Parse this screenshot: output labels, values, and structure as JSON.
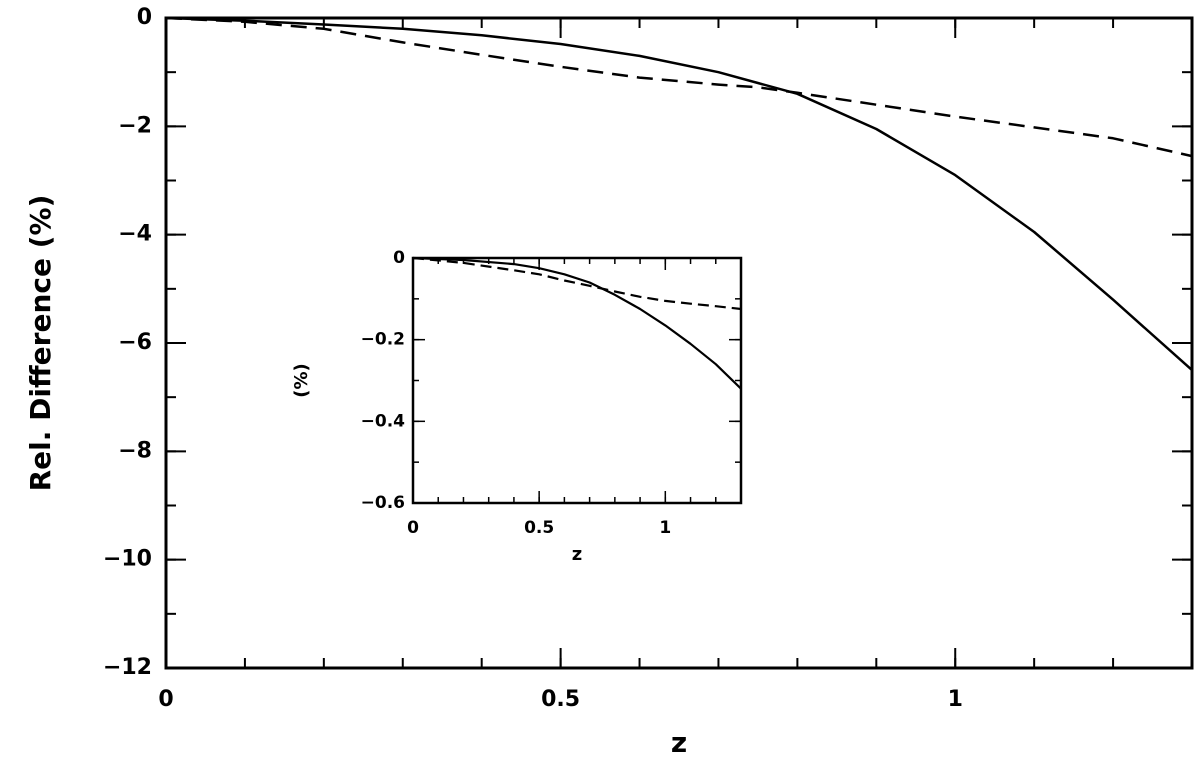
{
  "chart_data": [
    {
      "type": "line",
      "title": "",
      "xlabel": "z",
      "ylabel": "Rel. Difference (%)",
      "xlim": [
        0,
        1.3
      ],
      "ylim": [
        -12,
        0
      ],
      "xticks": [
        0,
        0.5,
        1
      ],
      "xtick_labels": [
        "0",
        "0.5",
        "1"
      ],
      "yticks": [
        0,
        -2,
        -4,
        -6,
        -8,
        -10,
        -12
      ],
      "ytick_labels": [
        "0",
        "−2",
        "−4",
        "−6",
        "−8",
        "−10",
        "−12"
      ],
      "grid": false,
      "legend": "none",
      "series": [
        {
          "style": "solid",
          "x": [
            0,
            0.1,
            0.2,
            0.3,
            0.4,
            0.5,
            0.6,
            0.7,
            0.75,
            0.8,
            0.9,
            1.0,
            1.1,
            1.2,
            1.3
          ],
          "y": [
            0,
            -0.05,
            -0.12,
            -0.2,
            -0.32,
            -0.48,
            -0.7,
            -1.0,
            -1.2,
            -1.4,
            -2.05,
            -2.9,
            -3.95,
            -5.2,
            -6.5
          ]
        },
        {
          "style": "dashed",
          "x": [
            0,
            0.1,
            0.2,
            0.3,
            0.4,
            0.5,
            0.6,
            0.7,
            0.75,
            0.8,
            0.9,
            1.0,
            1.1,
            1.2,
            1.3
          ],
          "y": [
            0,
            -0.07,
            -0.2,
            -0.45,
            -0.68,
            -0.9,
            -1.1,
            -1.23,
            -1.28,
            -1.38,
            -1.6,
            -1.82,
            -2.02,
            -2.22,
            -2.55
          ]
        }
      ]
    },
    {
      "type": "line",
      "title": "",
      "xlabel": "z",
      "ylabel": "(%)",
      "xlim": [
        0,
        1.3
      ],
      "ylim": [
        -0.6,
        0
      ],
      "xticks": [
        0,
        0.5,
        1
      ],
      "xtick_labels": [
        "0",
        "0.5",
        "1"
      ],
      "yticks": [
        0,
        -0.2,
        -0.4,
        -0.6
      ],
      "ytick_labels": [
        "0",
        "−0.2",
        "−0.4",
        "−0.6"
      ],
      "grid": false,
      "legend": "none",
      "series": [
        {
          "style": "solid",
          "x": [
            0,
            0.2,
            0.4,
            0.5,
            0.6,
            0.7,
            0.8,
            0.9,
            1.0,
            1.1,
            1.2,
            1.3
          ],
          "y": [
            0,
            -0.005,
            -0.015,
            -0.025,
            -0.04,
            -0.06,
            -0.09,
            -0.125,
            -0.165,
            -0.21,
            -0.26,
            -0.32
          ]
        },
        {
          "style": "dashed",
          "x": [
            0,
            0.2,
            0.4,
            0.5,
            0.6,
            0.7,
            0.8,
            0.9,
            1.0,
            1.1,
            1.2,
            1.3
          ],
          "y": [
            0,
            -0.012,
            -0.03,
            -0.04,
            -0.055,
            -0.068,
            -0.082,
            -0.095,
            -0.105,
            -0.112,
            -0.118,
            -0.125
          ]
        }
      ]
    }
  ]
}
